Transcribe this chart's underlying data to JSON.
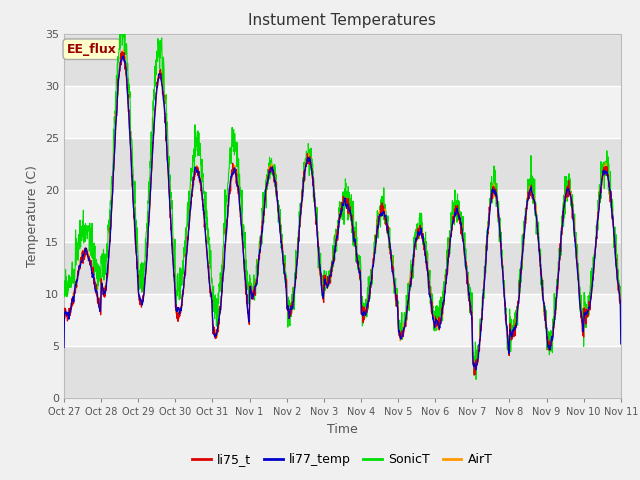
{
  "title": "Instument Temperatures",
  "xlabel": "Time",
  "ylabel": "Temperature (C)",
  "ylim": [
    0,
    35
  ],
  "xlim": [
    0,
    15
  ],
  "annotation_text": "EE_flux",
  "annotation_bg": "#ffffcc",
  "annotation_border": "#aaaaaa",
  "annotation_text_color": "#990000",
  "colors": {
    "li75_t": "#dd0000",
    "li77_temp": "#0000cc",
    "SonicT": "#00dd00",
    "AirT": "#ff9900"
  },
  "legend_labels": [
    "li75_t",
    "li77_temp",
    "SonicT",
    "AirT"
  ],
  "background_color": "#f0f0f0",
  "plot_bg": "#e8e8e8",
  "band_color_dark": "#d8d8d8",
  "band_color_light": "#f0f0f0",
  "tick_labels": [
    "Oct 27",
    "Oct 28",
    "Oct 29",
    "Oct 30",
    "Oct 31",
    "Nov 1",
    "Nov 2",
    "Nov 3",
    "Nov 4",
    "Nov 5",
    "Nov 6",
    "Nov 7",
    "Nov 8",
    "Nov 9",
    "Nov 10",
    "Nov 11"
  ],
  "tick_positions": [
    0,
    1,
    2,
    3,
    4,
    5,
    6,
    7,
    8,
    9,
    10,
    11,
    12,
    13,
    14,
    15
  ],
  "yticks": [
    0,
    5,
    10,
    15,
    20,
    25,
    30,
    35
  ]
}
